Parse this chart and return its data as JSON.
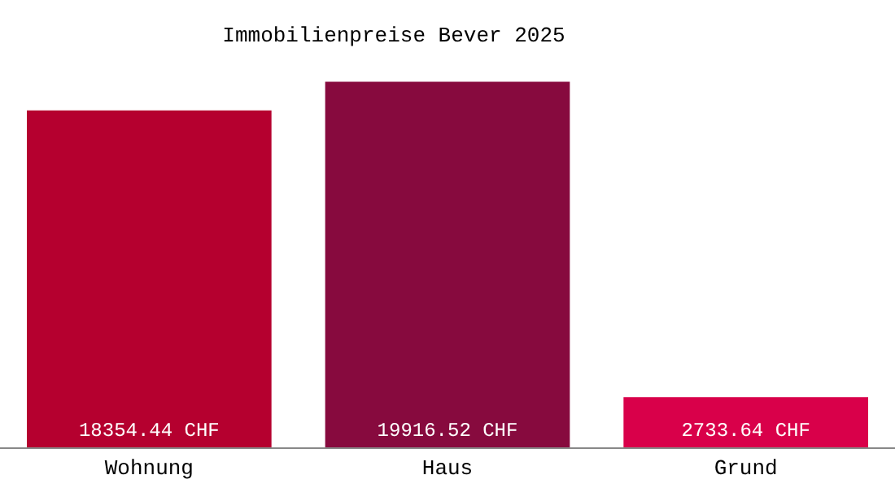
{
  "chart_data": {
    "type": "bar",
    "title": "Immobilienpreise Bever 2025",
    "categories": [
      "Wohnung",
      "Haus",
      "Grund"
    ],
    "values": [
      18354.44,
      19916.52,
      2733.64
    ],
    "colors": [
      "#b5002f",
      "#870a3e",
      "#d9004a"
    ],
    "value_labels": [
      "18354.44 CHF",
      "19916.52 CHF",
      "2733.64 CHF"
    ]
  }
}
